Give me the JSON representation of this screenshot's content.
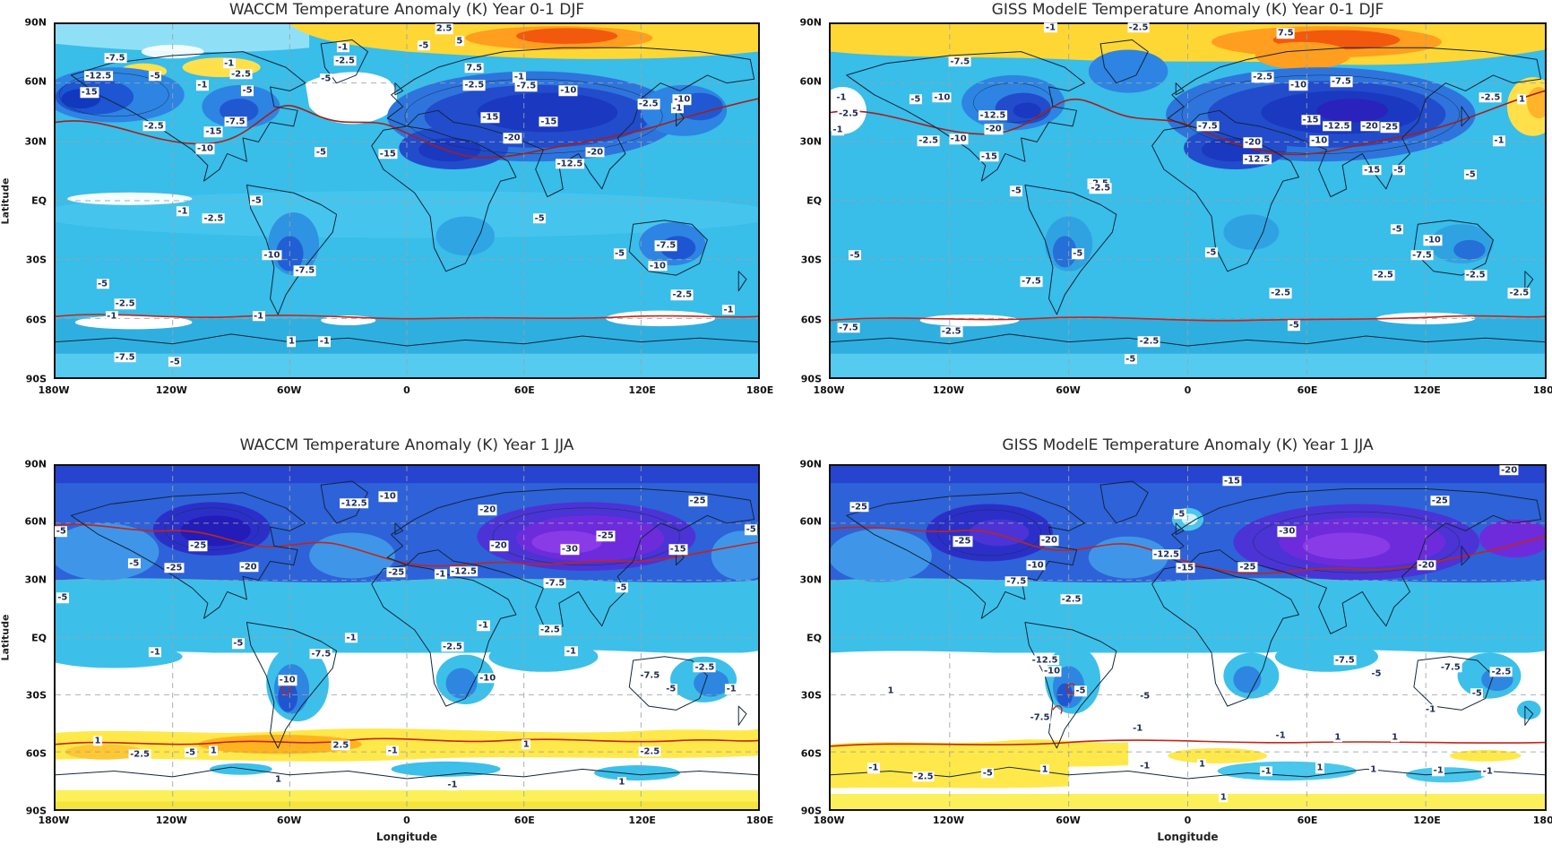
{
  "figure": {
    "background": "#ffffff",
    "layout": "2x2 panel grid of global filled-contour maps"
  },
  "axes": {
    "lat_label": "Latitude",
    "lon_label": "Longitude",
    "lat_ticks": [
      "90N",
      "60N",
      "30N",
      "EQ",
      "30S",
      "60S",
      "90S"
    ],
    "lon_ticks": [
      "180W",
      "120W",
      "60W",
      "0",
      "60E",
      "120E",
      "180E"
    ]
  },
  "palette": {
    "deep_purple": "#8A3BE8",
    "purple": "#6E2BDC",
    "blue_violet": "#4B33D6",
    "dark_blue": "#1B38C0",
    "blue": "#224CCC",
    "medium_blue": "#2E74DC",
    "light_blue": "#2E84E2",
    "cyan_blue": "#39BDE9",
    "pale_cyan": "#8FE0F6",
    "white_band": "#FFFFFF",
    "pale_yellow": "#FBF05A",
    "yellow": "#FFD735",
    "gold": "#FFB41E",
    "orange": "#FF9E1F",
    "red_orange": "#F2590D",
    "red_contour_line": "#C52418",
    "coastline": "#12263C",
    "gridline": "#9AA4A8"
  },
  "chart_data": [
    {
      "type": "filled_contour_map",
      "panel": "top-left",
      "model": "WACCM",
      "period": "Year 0-1 DJF",
      "title": "WACCM Temperature Anomaly (K) Year 0-1 DJF",
      "units": "K",
      "xlabel": "Longitude",
      "ylabel": "Latitude",
      "lon_range": [
        -180,
        180
      ],
      "lat_range": [
        -90,
        90
      ],
      "grid": "dashed 30-degree graticule",
      "contour_levels": [
        -30,
        -25,
        -20,
        -15,
        -12.5,
        -10,
        -7.5,
        -5,
        -2.5,
        -1,
        1,
        2.5,
        5,
        7.5
      ],
      "contour_labels": [
        {
          "t": "2.5",
          "x": 55.3,
          "y": 1.3
        },
        {
          "t": "-1",
          "x": 40.9,
          "y": 6.5
        },
        {
          "t": "5",
          "x": 57.5,
          "y": 4.7
        },
        {
          "t": "-5",
          "x": 52.4,
          "y": 6.0
        },
        {
          "t": "-7.5",
          "x": 8.5,
          "y": 9.6
        },
        {
          "t": "-12.5",
          "x": 6.1,
          "y": 14.7
        },
        {
          "t": "-5",
          "x": 14.2,
          "y": 14.7
        },
        {
          "t": "-15",
          "x": 4.8,
          "y": 19.4
        },
        {
          "t": "-2.5",
          "x": 41.2,
          "y": 10.3
        },
        {
          "t": "-5",
          "x": 38.5,
          "y": 15.5
        },
        {
          "t": "-1",
          "x": 24.7,
          "y": 11.1
        },
        {
          "t": "-2.5",
          "x": 26.4,
          "y": 14.2
        },
        {
          "t": "-5",
          "x": 27.3,
          "y": 18.9
        },
        {
          "t": "-1",
          "x": 20.9,
          "y": 17.3
        },
        {
          "t": "-7.5",
          "x": 25.6,
          "y": 27.6
        },
        {
          "t": "-15",
          "x": 22.5,
          "y": 30.5
        },
        {
          "t": "-2.5",
          "x": 14.0,
          "y": 28.9
        },
        {
          "t": "-10",
          "x": 21.3,
          "y": 35.4
        },
        {
          "t": "-5",
          "x": 37.8,
          "y": 36.2
        },
        {
          "t": "7.5",
          "x": 59.6,
          "y": 12.4
        },
        {
          "t": "-2.5",
          "x": 59.6,
          "y": 17.3
        },
        {
          "t": "-1",
          "x": 66.0,
          "y": 15.0
        },
        {
          "t": "-7.5",
          "x": 67.0,
          "y": 17.6
        },
        {
          "t": "-10",
          "x": 73.0,
          "y": 18.9
        },
        {
          "t": "-15",
          "x": 61.9,
          "y": 26.4
        },
        {
          "t": "-15",
          "x": 70.2,
          "y": 27.6
        },
        {
          "t": "-20",
          "x": 65.0,
          "y": 32.3
        },
        {
          "t": "-20",
          "x": 76.8,
          "y": 36.2
        },
        {
          "t": "-12.5",
          "x": 73.2,
          "y": 39.5
        },
        {
          "t": "-15",
          "x": 47.3,
          "y": 36.7
        },
        {
          "t": "-10",
          "x": 89.2,
          "y": 21.4
        },
        {
          "t": "-2.5",
          "x": 84.4,
          "y": 22.7
        },
        {
          "t": "-1",
          "x": 88.5,
          "y": 23.8
        },
        {
          "t": "-5",
          "x": 28.6,
          "y": 49.9
        },
        {
          "t": "-1",
          "x": 18.1,
          "y": 53.0
        },
        {
          "t": "-2.5",
          "x": 22.5,
          "y": 55.0
        },
        {
          "t": "-10",
          "x": 30.8,
          "y": 65.4
        },
        {
          "t": "-7.5",
          "x": 35.5,
          "y": 69.8
        },
        {
          "t": "-5",
          "x": 6.7,
          "y": 73.6
        },
        {
          "t": "-2.5",
          "x": 9.9,
          "y": 79.3
        },
        {
          "t": "-1",
          "x": 8.0,
          "y": 82.7
        },
        {
          "t": "-1",
          "x": 28.9,
          "y": 82.7
        },
        {
          "t": "1",
          "x": 33.6,
          "y": 89.9
        },
        {
          "t": "-1",
          "x": 38.3,
          "y": 89.9
        },
        {
          "t": "-7.5",
          "x": 9.9,
          "y": 94.3
        },
        {
          "t": "-5",
          "x": 17.0,
          "y": 95.6
        },
        {
          "t": "-5",
          "x": 68.9,
          "y": 55.0
        },
        {
          "t": "-5",
          "x": 80.3,
          "y": 65.1
        },
        {
          "t": "-7.5",
          "x": 86.9,
          "y": 62.8
        },
        {
          "t": "-10",
          "x": 85.7,
          "y": 68.5
        },
        {
          "t": "-2.5",
          "x": 89.2,
          "y": 76.7
        },
        {
          "t": "-1",
          "x": 95.8,
          "y": 80.9
        }
      ]
    },
    {
      "type": "filled_contour_map",
      "panel": "top-right",
      "model": "GISS ModelE",
      "period": "Year 0-1 DJF",
      "title": "GISS ModelE Temperature Anomaly (K) Year 0-1 DJF",
      "units": "K",
      "xlabel": "Longitude",
      "ylabel": "Latitude",
      "lon_range": [
        -180,
        180
      ],
      "lat_range": [
        -90,
        90
      ],
      "grid": "dashed 30-degree graticule",
      "contour_levels": [
        -30,
        -25,
        -20,
        -15,
        -12.5,
        -10,
        -7.5,
        -5,
        -2.5,
        -1,
        1,
        2.5,
        5,
        7.5
      ],
      "contour_labels": [
        {
          "t": "-1",
          "x": 30.8,
          "y": 1.0
        },
        {
          "t": "-2.5",
          "x": 43.1,
          "y": 1.0
        },
        {
          "t": "7.5",
          "x": 63.7,
          "y": 2.6
        },
        {
          "t": "-7.5",
          "x": 18.1,
          "y": 10.6
        },
        {
          "t": "-1",
          "x": 1.5,
          "y": 20.7
        },
        {
          "t": "-2.5",
          "x": 2.5,
          "y": 25.3
        },
        {
          "t": "-1",
          "x": 1.0,
          "y": 30.0
        },
        {
          "t": "-5",
          "x": 11.9,
          "y": 21.2
        },
        {
          "t": "-10",
          "x": 15.6,
          "y": 20.7
        },
        {
          "t": "-12.5",
          "x": 22.7,
          "y": 25.8
        },
        {
          "t": "-20",
          "x": 22.8,
          "y": 29.7
        },
        {
          "t": "-2.5",
          "x": 13.7,
          "y": 33.1
        },
        {
          "t": "-10",
          "x": 17.9,
          "y": 32.6
        },
        {
          "t": "-15",
          "x": 22.2,
          "y": 37.5
        },
        {
          "t": "-2.5",
          "x": 37.5,
          "y": 45.2
        },
        {
          "t": "-2.5",
          "x": 60.5,
          "y": 15.0
        },
        {
          "t": "-10",
          "x": 65.5,
          "y": 17.3
        },
        {
          "t": "-7.5",
          "x": 71.5,
          "y": 16.3
        },
        {
          "t": "-7.5",
          "x": 52.8,
          "y": 28.9
        },
        {
          "t": "-15",
          "x": 67.2,
          "y": 27.1
        },
        {
          "t": "-12.5",
          "x": 70.9,
          "y": 28.9
        },
        {
          "t": "-20",
          "x": 75.5,
          "y": 28.9
        },
        {
          "t": "-25",
          "x": 78.3,
          "y": 29.2
        },
        {
          "t": "-10",
          "x": 68.4,
          "y": 33.1
        },
        {
          "t": "-20",
          "x": 59.1,
          "y": 33.6
        },
        {
          "t": "-12.5",
          "x": 59.7,
          "y": 38.2
        },
        {
          "t": "-15",
          "x": 75.8,
          "y": 41.3
        },
        {
          "t": "-5",
          "x": 79.5,
          "y": 41.3
        },
        {
          "t": "-5",
          "x": 89.6,
          "y": 42.6
        },
        {
          "t": "-1",
          "x": 93.6,
          "y": 33.1
        },
        {
          "t": "-2.5",
          "x": 92.4,
          "y": 20.7
        },
        {
          "t": "1",
          "x": 96.8,
          "y": 21.2
        },
        {
          "t": "-5",
          "x": 26.0,
          "y": 47.3
        },
        {
          "t": "-2.5",
          "x": 37.8,
          "y": 46.5
        },
        {
          "t": "-5",
          "x": 3.4,
          "y": 65.4
        },
        {
          "t": "-5",
          "x": 34.6,
          "y": 65.1
        },
        {
          "t": "-7.5",
          "x": 28.1,
          "y": 72.9
        },
        {
          "t": "-2.5",
          "x": 16.9,
          "y": 87.1
        },
        {
          "t": "-2.5",
          "x": 44.6,
          "y": 89.9
        },
        {
          "t": "-5",
          "x": 42.0,
          "y": 94.8
        },
        {
          "t": "-5",
          "x": 53.3,
          "y": 64.6
        },
        {
          "t": "-5",
          "x": 79.3,
          "y": 58.1
        },
        {
          "t": "-10",
          "x": 84.3,
          "y": 61.2
        },
        {
          "t": "-7.5",
          "x": 82.8,
          "y": 65.4
        },
        {
          "t": "-2.5",
          "x": 77.4,
          "y": 71.1
        },
        {
          "t": "-2.5",
          "x": 90.3,
          "y": 71.1
        },
        {
          "t": "-2.5",
          "x": 63.0,
          "y": 76.2
        },
        {
          "t": "-5",
          "x": 64.9,
          "y": 85.3
        },
        {
          "t": "-7.5",
          "x": 2.5,
          "y": 86.0
        },
        {
          "t": "-2.5",
          "x": 96.4,
          "y": 76.2
        }
      ]
    },
    {
      "type": "filled_contour_map",
      "panel": "bottom-left",
      "model": "WACCM",
      "period": "Year 1 JJA",
      "title": "WACCM Temperature Anomaly (K) Year 1 JJA",
      "units": "K",
      "xlabel": "Longitude",
      "ylabel": "Latitude",
      "lon_range": [
        -180,
        180
      ],
      "lat_range": [
        -90,
        90
      ],
      "grid": "dashed 30-degree graticule",
      "contour_levels": [
        -30,
        -25,
        -20,
        -15,
        -12.5,
        -10,
        -7.5,
        -5,
        -2.5,
        -1,
        1,
        2.5,
        5,
        7.5
      ],
      "contour_labels": [
        {
          "t": "-12.5",
          "x": 42.5,
          "y": 10.9
        },
        {
          "t": "-10",
          "x": 47.3,
          "y": 9.0
        },
        {
          "t": "-25",
          "x": 20.3,
          "y": 23.3
        },
        {
          "t": "-5",
          "x": 11.2,
          "y": 28.4
        },
        {
          "t": "-25",
          "x": 16.9,
          "y": 29.7
        },
        {
          "t": "-20",
          "x": 27.5,
          "y": 29.5
        },
        {
          "t": "-5",
          "x": 0.8,
          "y": 19.1
        },
        {
          "t": "-20",
          "x": 61.5,
          "y": 12.9
        },
        {
          "t": "-20",
          "x": 63.1,
          "y": 23.3
        },
        {
          "t": "-25",
          "x": 78.3,
          "y": 20.4
        },
        {
          "t": "-30",
          "x": 73.2,
          "y": 24.3
        },
        {
          "t": "-15",
          "x": 88.6,
          "y": 24.3
        },
        {
          "t": "-25",
          "x": 91.4,
          "y": 10.3
        },
        {
          "t": "-12.5",
          "x": 58.1,
          "y": 30.7
        },
        {
          "t": "-25",
          "x": 48.5,
          "y": 31.0
        },
        {
          "t": "-1",
          "x": 54.8,
          "y": 31.5
        },
        {
          "t": "-7.5",
          "x": 71.1,
          "y": 34.1
        },
        {
          "t": "-5",
          "x": 80.6,
          "y": 35.4
        },
        {
          "t": "-5",
          "x": 99.0,
          "y": 18.6
        },
        {
          "t": "-5",
          "x": 1.0,
          "y": 38.5
        },
        {
          "t": "-1",
          "x": 14.2,
          "y": 54.3
        },
        {
          "t": "-5",
          "x": 26.0,
          "y": 51.7
        },
        {
          "t": "-1",
          "x": 42.1,
          "y": 50.1
        },
        {
          "t": "-7.5",
          "x": 37.8,
          "y": 54.8
        },
        {
          "t": "-10",
          "x": 33.0,
          "y": 62.5
        },
        {
          "t": "-2.5",
          "x": 56.5,
          "y": 52.7
        },
        {
          "t": "-2.5",
          "x": 70.4,
          "y": 47.8
        },
        {
          "t": "-1",
          "x": 60.9,
          "y": 46.5
        },
        {
          "t": "-1",
          "x": 73.4,
          "y": 54.0
        },
        {
          "t": "-10",
          "x": 61.5,
          "y": 61.8
        },
        {
          "t": "-7.5",
          "x": 84.6,
          "y": 61.2
        },
        {
          "t": "-5",
          "x": 87.6,
          "y": 65.1
        },
        {
          "t": "-2.5",
          "x": 92.4,
          "y": 58.7
        },
        {
          "t": "-1",
          "x": 96.2,
          "y": 65.1
        },
        {
          "t": "1",
          "x": 6.0,
          "y": 80.1
        },
        {
          "t": "-2.5",
          "x": 12.0,
          "y": 84.0
        },
        {
          "t": "-5",
          "x": 19.2,
          "y": 83.5
        },
        {
          "t": "1",
          "x": 22.5,
          "y": 82.9
        },
        {
          "t": "2.5",
          "x": 40.6,
          "y": 81.4
        },
        {
          "t": "-1",
          "x": 48.0,
          "y": 83.0
        },
        {
          "t": "1",
          "x": 67.0,
          "y": 81.1
        },
        {
          "t": "-2.5",
          "x": 84.6,
          "y": 83.2
        },
        {
          "t": "1",
          "x": 31.7,
          "y": 91.5
        },
        {
          "t": "-1",
          "x": 56.5,
          "y": 93.0
        },
        {
          "t": "1",
          "x": 80.6,
          "y": 92.2
        }
      ]
    },
    {
      "type": "filled_contour_map",
      "panel": "bottom-right",
      "model": "GISS ModelE",
      "period": "Year 1 JJA",
      "title": "GISS ModelE Temperature Anomaly (K) Year 1 JJA",
      "units": "K",
      "xlabel": "Longitude",
      "ylabel": "Latitude",
      "lon_range": [
        -180,
        180
      ],
      "lat_range": [
        -90,
        90
      ],
      "grid": "dashed 30-degree graticule",
      "contour_levels": [
        -30,
        -25,
        -20,
        -15,
        -12.5,
        -10,
        -7.5,
        -5,
        -2.5,
        -1,
        1,
        2.5,
        5,
        7.5
      ],
      "contour_labels": [
        {
          "t": "-15",
          "x": 56.2,
          "y": 4.4
        },
        {
          "t": "-20",
          "x": 95.0,
          "y": 1.3
        },
        {
          "t": "-25",
          "x": 4.0,
          "y": 11.9
        },
        {
          "t": "-25",
          "x": 18.5,
          "y": 22.0
        },
        {
          "t": "-20",
          "x": 30.6,
          "y": 21.7
        },
        {
          "t": "-10",
          "x": 28.7,
          "y": 28.9
        },
        {
          "t": "-5",
          "x": 48.9,
          "y": 14.0
        },
        {
          "t": "-12.5",
          "x": 47.0,
          "y": 25.8
        },
        {
          "t": "-15",
          "x": 49.7,
          "y": 29.7
        },
        {
          "t": "-30",
          "x": 63.9,
          "y": 19.1
        },
        {
          "t": "-25",
          "x": 58.4,
          "y": 29.5
        },
        {
          "t": "-25",
          "x": 85.3,
          "y": 10.1
        },
        {
          "t": "-20",
          "x": 83.4,
          "y": 28.9
        },
        {
          "t": "-7.5",
          "x": 26.0,
          "y": 33.6
        },
        {
          "t": "-2.5",
          "x": 33.7,
          "y": 38.8
        },
        {
          "t": "-12.5",
          "x": 30.0,
          "y": 56.6
        },
        {
          "t": "-10",
          "x": 31.0,
          "y": 59.9
        },
        {
          "t": "-5",
          "x": 35.0,
          "y": 65.6
        },
        {
          "t": "1",
          "x": 8.4,
          "y": 65.6
        },
        {
          "t": "-7.5",
          "x": 29.3,
          "y": 73.4
        },
        {
          "t": "-5",
          "x": 44.0,
          "y": 67.0
        },
        {
          "t": "-7.5",
          "x": 72.0,
          "y": 56.6
        },
        {
          "t": "-5",
          "x": 76.4,
          "y": 60.5
        },
        {
          "t": "-7.5",
          "x": 86.8,
          "y": 58.7
        },
        {
          "t": "-2.5",
          "x": 93.9,
          "y": 60.0
        },
        {
          "t": "-5",
          "x": 90.5,
          "y": 66.4
        },
        {
          "t": "-1",
          "x": 84.0,
          "y": 71.0
        },
        {
          "t": "-1",
          "x": 43.0,
          "y": 76.5
        },
        {
          "t": "-1",
          "x": 63.0,
          "y": 78.5
        },
        {
          "t": "1",
          "x": 71.0,
          "y": 79.0
        },
        {
          "t": "1",
          "x": 79.0,
          "y": 79.0
        },
        {
          "t": "-1",
          "x": 6.0,
          "y": 88.0
        },
        {
          "t": "-2.5",
          "x": 13.0,
          "y": 90.5
        },
        {
          "t": "-5",
          "x": 22.0,
          "y": 89.5
        },
        {
          "t": "1",
          "x": 30.0,
          "y": 88.5
        },
        {
          "t": "-1",
          "x": 44.0,
          "y": 87.5
        },
        {
          "t": "1",
          "x": 52.0,
          "y": 87.0
        },
        {
          "t": "-1",
          "x": 61.0,
          "y": 89.0
        },
        {
          "t": "1",
          "x": 68.5,
          "y": 88.0
        },
        {
          "t": "1",
          "x": 76.0,
          "y": 88.5
        },
        {
          "t": "-1",
          "x": 85.1,
          "y": 88.9
        },
        {
          "t": "1",
          "x": 55.0,
          "y": 96.5
        },
        {
          "t": "-1",
          "x": 92.0,
          "y": 89.0
        }
      ]
    }
  ]
}
